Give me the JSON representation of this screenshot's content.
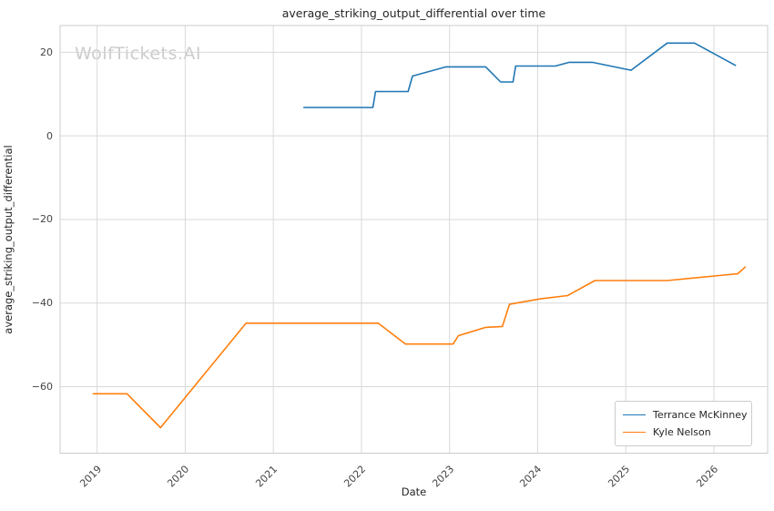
{
  "watermark": {
    "text": "WolfTickets.AI",
    "color": "#cccccc"
  },
  "chart_data": {
    "type": "line",
    "title": "average_striking_output_differential over time",
    "xlabel": "Date",
    "ylabel": "average_striking_output_differential",
    "grid": true,
    "legend_position": "lower right",
    "xlim": [
      2018.58,
      2026.61
    ],
    "ylim": [
      -75.9,
      26.4
    ],
    "x_ticks": [
      2019,
      2020,
      2021,
      2022,
      2023,
      2024,
      2025,
      2026
    ],
    "x_tick_labels": [
      "2019",
      "2020",
      "2021",
      "2022",
      "2023",
      "2024",
      "2025",
      "2026"
    ],
    "y_ticks": [
      20,
      0,
      -20,
      -40,
      -60
    ],
    "y_tick_labels": [
      "20",
      "0",
      "−20",
      "−40",
      "−60"
    ],
    "grid_color": "#d9d9d9",
    "spine_color": "#cccccc",
    "series": [
      {
        "name": "Terrance McKinney",
        "color": "#1f77b4",
        "points": [
          [
            2021.34,
            6.8
          ],
          [
            2022.13,
            6.8
          ],
          [
            2022.16,
            10.6
          ],
          [
            2022.53,
            10.6
          ],
          [
            2022.58,
            14.3
          ],
          [
            2022.96,
            16.5
          ],
          [
            2023.41,
            16.5
          ],
          [
            2023.58,
            12.9
          ],
          [
            2023.72,
            12.9
          ],
          [
            2023.75,
            16.7
          ],
          [
            2024.2,
            16.7
          ],
          [
            2024.36,
            17.6
          ],
          [
            2024.62,
            17.6
          ],
          [
            2025.06,
            15.7
          ],
          [
            2025.47,
            22.2
          ],
          [
            2025.78,
            22.2
          ],
          [
            2026.25,
            16.8
          ]
        ]
      },
      {
        "name": "Kyle Nelson",
        "color": "#ff7f0e",
        "points": [
          [
            2018.95,
            -61.7
          ],
          [
            2019.34,
            -61.7
          ],
          [
            2019.72,
            -69.8
          ],
          [
            2020.69,
            -44.8
          ],
          [
            2022.19,
            -44.8
          ],
          [
            2022.5,
            -49.8
          ],
          [
            2023.04,
            -49.8
          ],
          [
            2023.1,
            -47.8
          ],
          [
            2023.41,
            -45.8
          ],
          [
            2023.6,
            -45.6
          ],
          [
            2023.68,
            -40.3
          ],
          [
            2024.03,
            -39.0
          ],
          [
            2024.34,
            -38.2
          ],
          [
            2024.65,
            -34.6
          ],
          [
            2025.47,
            -34.6
          ],
          [
            2026.11,
            -33.3
          ],
          [
            2026.27,
            -33.0
          ],
          [
            2026.36,
            -31.3
          ]
        ]
      }
    ]
  }
}
